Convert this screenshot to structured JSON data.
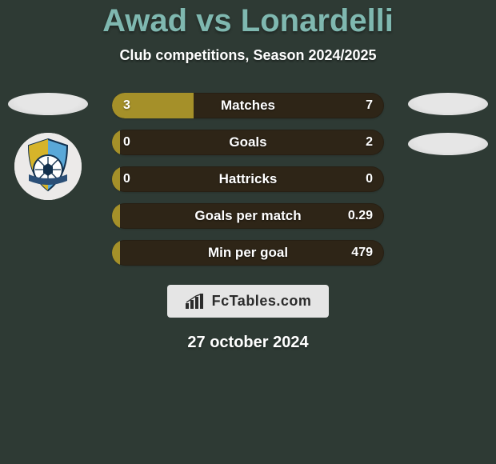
{
  "colors": {
    "background": "#2e3a34",
    "title": "#7fb8b0",
    "text_light": "#ffffff",
    "bar_track": "#2e2517",
    "bar_fill": "#a59029",
    "oval": "#e6e6e6",
    "oval_shadow": "#cfcfcf",
    "attribution_bg": "#e5e5e5",
    "attribution_text": "#2b2b2b",
    "badge_bg": "#eceae9",
    "badge_blue": "#5aa8d8",
    "badge_yellow": "#d6b42a",
    "badge_navy": "#12304d",
    "badge_ribbon": "#2b4f77"
  },
  "title": "Awad vs Lonardelli",
  "subtitle": "Club competitions, Season 2024/2025",
  "date": "27 october 2024",
  "attribution": "FcTables.com",
  "bars": [
    {
      "label": "Matches",
      "left": "3",
      "right": "7",
      "fill_pct": 30
    },
    {
      "label": "Goals",
      "left": "0",
      "right": "2",
      "fill_pct": 3
    },
    {
      "label": "Hattricks",
      "left": "0",
      "right": "0",
      "fill_pct": 3
    },
    {
      "label": "Goals per match",
      "left": "",
      "right": "0.29",
      "fill_pct": 3
    },
    {
      "label": "Min per goal",
      "left": "",
      "right": "479",
      "fill_pct": 3
    }
  ],
  "bar_label_fontsize": 17,
  "bar_value_fontsize": 16
}
